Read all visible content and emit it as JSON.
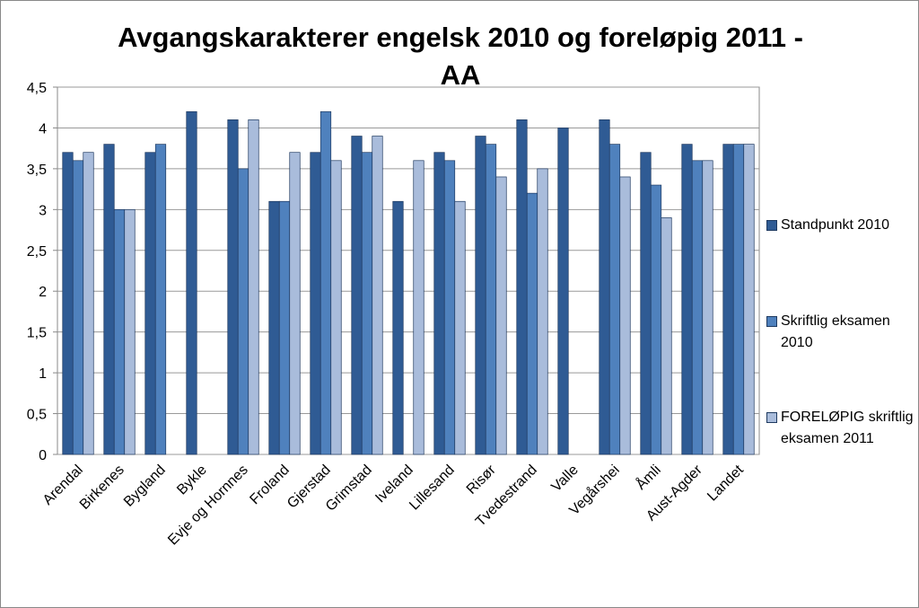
{
  "chart_data": {
    "type": "bar",
    "title": "Avgangskarakterer engelsk 2010 og foreløpig 2011 - AA",
    "categories": [
      "Arendal",
      "Birkenes",
      "Bygland",
      "Bykle",
      "Evje og Hornnes",
      "Froland",
      "Gjerstad",
      "Grimstad",
      "Iveland",
      "Lillesand",
      "Risør",
      "Tvedestrand",
      "Valle",
      "Vegårshei",
      "Åmli",
      "Aust-Agder",
      "Landet"
    ],
    "series": [
      {
        "name": "Standpunkt 2010",
        "color": "#2f5b94",
        "values": [
          3.7,
          3.8,
          3.7,
          4.2,
          4.1,
          3.1,
          3.7,
          3.9,
          3.1,
          3.7,
          3.9,
          4.1,
          4.0,
          4.1,
          3.7,
          3.8,
          3.8
        ]
      },
      {
        "name": "Skriftlig eksamen 2010",
        "color": "#4f81bd",
        "values": [
          3.6,
          3.0,
          3.8,
          null,
          3.5,
          3.1,
          4.2,
          3.7,
          null,
          3.6,
          3.8,
          3.2,
          null,
          3.8,
          3.3,
          3.6,
          3.8
        ]
      },
      {
        "name": "FORELØPIG skriftlig eksamen 2011",
        "color": "#a9bcdb",
        "values": [
          3.7,
          3.0,
          null,
          null,
          4.1,
          3.7,
          3.6,
          3.9,
          3.6,
          3.1,
          3.4,
          3.5,
          null,
          3.4,
          2.9,
          3.6,
          3.8
        ]
      }
    ],
    "ylim": [
      0,
      4.5
    ],
    "yticks": [
      0,
      {
        "value": 0.5,
        "label": "0,5"
      },
      1,
      {
        "value": 1.5,
        "label": "1,5"
      },
      2,
      {
        "value": 2.5,
        "label": "2,5"
      },
      3,
      {
        "value": 3.5,
        "label": "3,5"
      },
      4,
      {
        "value": 4.5,
        "label": "4,5"
      }
    ],
    "grid": true,
    "legend": "right"
  }
}
